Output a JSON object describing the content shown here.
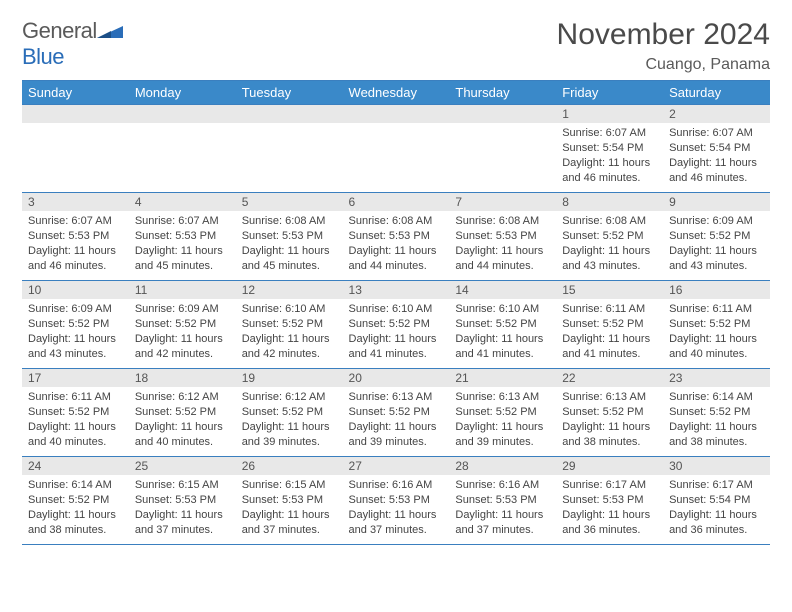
{
  "brand": {
    "word1": "General",
    "word2": "Blue"
  },
  "title": "November 2024",
  "location": "Cuango, Panama",
  "colors": {
    "header_bg": "#3a89c9",
    "header_text": "#ffffff",
    "border": "#3a7fbf",
    "daynum_bg": "#e8e8e8",
    "text": "#444444",
    "flag": "#2a6db8"
  },
  "typography": {
    "title_fontsize": 30,
    "location_fontsize": 16,
    "th_fontsize": 13,
    "daynum_fontsize": 12,
    "body_fontsize": 11
  },
  "day_labels": [
    "Sunday",
    "Monday",
    "Tuesday",
    "Wednesday",
    "Thursday",
    "Friday",
    "Saturday"
  ],
  "weeks": [
    [
      null,
      null,
      null,
      null,
      null,
      {
        "n": "1",
        "sr": "Sunrise: 6:07 AM",
        "ss": "Sunset: 5:54 PM",
        "d1": "Daylight: 11 hours",
        "d2": "and 46 minutes."
      },
      {
        "n": "2",
        "sr": "Sunrise: 6:07 AM",
        "ss": "Sunset: 5:54 PM",
        "d1": "Daylight: 11 hours",
        "d2": "and 46 minutes."
      }
    ],
    [
      {
        "n": "3",
        "sr": "Sunrise: 6:07 AM",
        "ss": "Sunset: 5:53 PM",
        "d1": "Daylight: 11 hours",
        "d2": "and 46 minutes."
      },
      {
        "n": "4",
        "sr": "Sunrise: 6:07 AM",
        "ss": "Sunset: 5:53 PM",
        "d1": "Daylight: 11 hours",
        "d2": "and 45 minutes."
      },
      {
        "n": "5",
        "sr": "Sunrise: 6:08 AM",
        "ss": "Sunset: 5:53 PM",
        "d1": "Daylight: 11 hours",
        "d2": "and 45 minutes."
      },
      {
        "n": "6",
        "sr": "Sunrise: 6:08 AM",
        "ss": "Sunset: 5:53 PM",
        "d1": "Daylight: 11 hours",
        "d2": "and 44 minutes."
      },
      {
        "n": "7",
        "sr": "Sunrise: 6:08 AM",
        "ss": "Sunset: 5:53 PM",
        "d1": "Daylight: 11 hours",
        "d2": "and 44 minutes."
      },
      {
        "n": "8",
        "sr": "Sunrise: 6:08 AM",
        "ss": "Sunset: 5:52 PM",
        "d1": "Daylight: 11 hours",
        "d2": "and 43 minutes."
      },
      {
        "n": "9",
        "sr": "Sunrise: 6:09 AM",
        "ss": "Sunset: 5:52 PM",
        "d1": "Daylight: 11 hours",
        "d2": "and 43 minutes."
      }
    ],
    [
      {
        "n": "10",
        "sr": "Sunrise: 6:09 AM",
        "ss": "Sunset: 5:52 PM",
        "d1": "Daylight: 11 hours",
        "d2": "and 43 minutes."
      },
      {
        "n": "11",
        "sr": "Sunrise: 6:09 AM",
        "ss": "Sunset: 5:52 PM",
        "d1": "Daylight: 11 hours",
        "d2": "and 42 minutes."
      },
      {
        "n": "12",
        "sr": "Sunrise: 6:10 AM",
        "ss": "Sunset: 5:52 PM",
        "d1": "Daylight: 11 hours",
        "d2": "and 42 minutes."
      },
      {
        "n": "13",
        "sr": "Sunrise: 6:10 AM",
        "ss": "Sunset: 5:52 PM",
        "d1": "Daylight: 11 hours",
        "d2": "and 41 minutes."
      },
      {
        "n": "14",
        "sr": "Sunrise: 6:10 AM",
        "ss": "Sunset: 5:52 PM",
        "d1": "Daylight: 11 hours",
        "d2": "and 41 minutes."
      },
      {
        "n": "15",
        "sr": "Sunrise: 6:11 AM",
        "ss": "Sunset: 5:52 PM",
        "d1": "Daylight: 11 hours",
        "d2": "and 41 minutes."
      },
      {
        "n": "16",
        "sr": "Sunrise: 6:11 AM",
        "ss": "Sunset: 5:52 PM",
        "d1": "Daylight: 11 hours",
        "d2": "and 40 minutes."
      }
    ],
    [
      {
        "n": "17",
        "sr": "Sunrise: 6:11 AM",
        "ss": "Sunset: 5:52 PM",
        "d1": "Daylight: 11 hours",
        "d2": "and 40 minutes."
      },
      {
        "n": "18",
        "sr": "Sunrise: 6:12 AM",
        "ss": "Sunset: 5:52 PM",
        "d1": "Daylight: 11 hours",
        "d2": "and 40 minutes."
      },
      {
        "n": "19",
        "sr": "Sunrise: 6:12 AM",
        "ss": "Sunset: 5:52 PM",
        "d1": "Daylight: 11 hours",
        "d2": "and 39 minutes."
      },
      {
        "n": "20",
        "sr": "Sunrise: 6:13 AM",
        "ss": "Sunset: 5:52 PM",
        "d1": "Daylight: 11 hours",
        "d2": "and 39 minutes."
      },
      {
        "n": "21",
        "sr": "Sunrise: 6:13 AM",
        "ss": "Sunset: 5:52 PM",
        "d1": "Daylight: 11 hours",
        "d2": "and 39 minutes."
      },
      {
        "n": "22",
        "sr": "Sunrise: 6:13 AM",
        "ss": "Sunset: 5:52 PM",
        "d1": "Daylight: 11 hours",
        "d2": "and 38 minutes."
      },
      {
        "n": "23",
        "sr": "Sunrise: 6:14 AM",
        "ss": "Sunset: 5:52 PM",
        "d1": "Daylight: 11 hours",
        "d2": "and 38 minutes."
      }
    ],
    [
      {
        "n": "24",
        "sr": "Sunrise: 6:14 AM",
        "ss": "Sunset: 5:52 PM",
        "d1": "Daylight: 11 hours",
        "d2": "and 38 minutes."
      },
      {
        "n": "25",
        "sr": "Sunrise: 6:15 AM",
        "ss": "Sunset: 5:53 PM",
        "d1": "Daylight: 11 hours",
        "d2": "and 37 minutes."
      },
      {
        "n": "26",
        "sr": "Sunrise: 6:15 AM",
        "ss": "Sunset: 5:53 PM",
        "d1": "Daylight: 11 hours",
        "d2": "and 37 minutes."
      },
      {
        "n": "27",
        "sr": "Sunrise: 6:16 AM",
        "ss": "Sunset: 5:53 PM",
        "d1": "Daylight: 11 hours",
        "d2": "and 37 minutes."
      },
      {
        "n": "28",
        "sr": "Sunrise: 6:16 AM",
        "ss": "Sunset: 5:53 PM",
        "d1": "Daylight: 11 hours",
        "d2": "and 37 minutes."
      },
      {
        "n": "29",
        "sr": "Sunrise: 6:17 AM",
        "ss": "Sunset: 5:53 PM",
        "d1": "Daylight: 11 hours",
        "d2": "and 36 minutes."
      },
      {
        "n": "30",
        "sr": "Sunrise: 6:17 AM",
        "ss": "Sunset: 5:54 PM",
        "d1": "Daylight: 11 hours",
        "d2": "and 36 minutes."
      }
    ]
  ]
}
